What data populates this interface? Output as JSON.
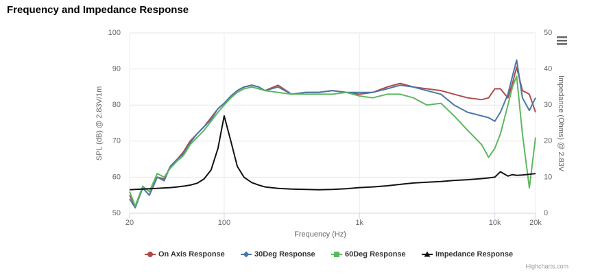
{
  "chart_data": {
    "type": "line",
    "title": "Frequency and Impedance Response",
    "xlabel": "Frequency (Hz)",
    "ylabel": "SPL (dB) @ 2.83V/1m",
    "y2label": "Impedance (Ohms) @ 2.83V",
    "credits": "Highcharts.com",
    "xscale": "log",
    "grid": true,
    "legend": "bottom",
    "x": [
      20,
      22,
      25,
      28,
      32,
      36,
      40,
      45,
      50,
      56,
      63,
      71,
      80,
      90,
      100,
      112,
      125,
      140,
      160,
      180,
      200,
      250,
      315,
      400,
      500,
      630,
      800,
      1000,
      1250,
      1600,
      2000,
      2500,
      3150,
      4000,
      5000,
      6300,
      8000,
      9000,
      10000,
      11000,
      12500,
      13500,
      14500,
      16000,
      18000,
      20000
    ],
    "xlim": [
      20,
      20000
    ],
    "xticks": [
      20,
      100,
      {
        "value": 1000,
        "label": "1k"
      },
      {
        "value": 10000,
        "label": "10k"
      },
      {
        "value": 20000,
        "label": "20k"
      }
    ],
    "ylim": [
      50,
      100
    ],
    "yticks": [
      50,
      60,
      70,
      80,
      90,
      100
    ],
    "y2lim": [
      0,
      50
    ],
    "y2ticks": [
      0,
      10,
      20,
      30,
      40,
      50
    ],
    "series": [
      {
        "name": "On Axis Response",
        "color": "#b04a4a",
        "marker": "circle",
        "values": [
          55,
          52,
          57,
          55,
          60,
          59.5,
          63,
          65,
          67,
          70,
          72,
          74,
          76.5,
          79,
          80.5,
          82,
          84,
          85,
          85.5,
          85,
          84,
          85.5,
          83,
          83.5,
          83.5,
          84,
          83.5,
          83,
          83.5,
          85,
          86,
          85,
          84.5,
          84,
          83,
          82,
          81.5,
          82,
          84.5,
          84.5,
          82,
          86,
          90.5,
          84,
          83,
          78
        ]
      },
      {
        "name": "30Deg Response",
        "color": "#4a78a8",
        "marker": "diamond",
        "values": [
          54,
          51.5,
          57,
          55,
          60,
          59,
          63,
          65,
          66.5,
          69.5,
          72,
          74,
          76,
          79,
          80.5,
          82.5,
          84,
          85,
          85.5,
          85,
          84,
          85,
          83,
          83.5,
          83.5,
          84,
          83.5,
          83.5,
          83.5,
          84.5,
          85.5,
          85,
          84,
          83,
          80,
          78,
          77,
          76.5,
          75.5,
          78,
          83,
          88,
          92.5,
          82,
          78.5,
          82
        ]
      },
      {
        "name": "60Deg Response",
        "color": "#5cb85f",
        "marker": "square",
        "values": [
          56,
          52,
          57.5,
          56,
          61,
          60,
          62.5,
          64.5,
          66,
          69,
          71,
          73,
          75.5,
          78,
          80,
          82,
          83.5,
          84.5,
          85,
          84.5,
          84,
          83.5,
          83,
          83,
          83,
          83,
          83.5,
          82.5,
          82,
          83,
          83,
          82,
          80,
          80.5,
          77,
          73,
          69,
          65.5,
          68,
          72,
          80,
          85,
          88,
          72,
          57,
          71
        ]
      },
      {
        "name": "Impedance Response",
        "color": "#111111",
        "marker": "triangle",
        "axis": "y2",
        "values": [
          6.5,
          6.6,
          6.7,
          6.8,
          6.9,
          7,
          7.1,
          7.3,
          7.5,
          7.8,
          8.3,
          9.5,
          12,
          18,
          27,
          20,
          13,
          10,
          8.5,
          7.8,
          7.3,
          6.9,
          6.7,
          6.6,
          6.5,
          6.6,
          6.8,
          7.1,
          7.3,
          7.6,
          8,
          8.4,
          8.6,
          8.8,
          9.1,
          9.3,
          9.6,
          9.8,
          10,
          11.5,
          10.3,
          10.7,
          10.5,
          10.6,
          10.8,
          11
        ]
      }
    ]
  }
}
